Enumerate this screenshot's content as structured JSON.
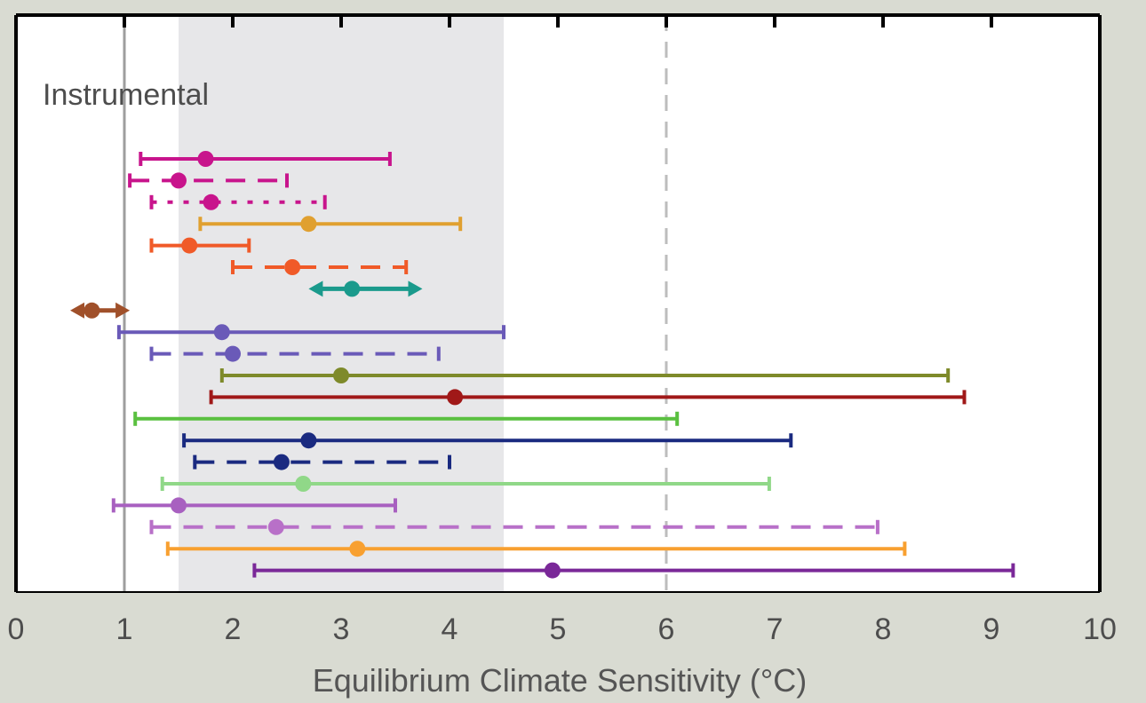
{
  "chart_data": {
    "type": "errorbar",
    "panel_label": "Instrumental",
    "xlabel": "Equilibrium Climate Sensitivity (°C)",
    "xlim": [
      0,
      10
    ],
    "x_ticks": [
      "0",
      "1",
      "2",
      "3",
      "4",
      "5",
      "6",
      "7",
      "8",
      "9",
      "10"
    ],
    "grid": false,
    "reference_lines": [
      {
        "x": 1,
        "style": "solid",
        "color": "#9e9e9e"
      },
      {
        "x": 6,
        "style": "dashed",
        "color": "#bdbdbd"
      }
    ],
    "likely_range": {
      "from": 1.5,
      "to": 4.5,
      "color": "#e7e7e9"
    },
    "estimates": [
      {
        "color": "#c8148c",
        "style": "solid",
        "low": 1.15,
        "best": 1.75,
        "high": 3.45,
        "cap": "bar"
      },
      {
        "color": "#c8148c",
        "style": "dashed",
        "low": 1.05,
        "best": 1.5,
        "high": 2.5,
        "cap": "bar"
      },
      {
        "color": "#c8148c",
        "style": "dotted",
        "low": 1.25,
        "best": 1.8,
        "high": 2.85,
        "cap": "bar"
      },
      {
        "color": "#e0a030",
        "style": "solid",
        "low": 1.7,
        "best": 2.7,
        "high": 4.1,
        "cap": "bar"
      },
      {
        "color": "#f05a28",
        "style": "solid",
        "low": 1.25,
        "best": 1.6,
        "high": 2.15,
        "cap": "bar"
      },
      {
        "color": "#f05a28",
        "style": "dashed",
        "low": 2.0,
        "best": 2.55,
        "high": 3.6,
        "cap": "bar"
      },
      {
        "color": "#1a9a8c",
        "style": "solid",
        "low": 2.7,
        "best": 3.1,
        "high": 3.75,
        "cap": "arrow"
      },
      {
        "color": "#a0502a",
        "style": "solid",
        "low": 0.5,
        "best": 0.7,
        "high": 1.05,
        "cap": "arrow"
      },
      {
        "color": "#6a5ab8",
        "style": "solid",
        "low": 0.95,
        "best": 1.9,
        "high": 4.5,
        "cap": "bar"
      },
      {
        "color": "#6a5ab8",
        "style": "dashed",
        "low": 1.25,
        "best": 2.0,
        "high": 3.9,
        "cap": "bar"
      },
      {
        "color": "#7e8a2a",
        "style": "solid",
        "low": 1.9,
        "best": 3.0,
        "high": 8.6,
        "cap": "bar"
      },
      {
        "color": "#a01818",
        "style": "solid",
        "low": 1.8,
        "best": 4.05,
        "high": 8.75,
        "cap": "bar"
      },
      {
        "color": "#5ac040",
        "style": "solid",
        "low": 1.1,
        "best": null,
        "high": 6.1,
        "cap": "bar"
      },
      {
        "color": "#1a2a80",
        "style": "solid",
        "low": 1.55,
        "best": 2.7,
        "high": 7.15,
        "cap": "bar"
      },
      {
        "color": "#1a2a80",
        "style": "dashed",
        "low": 1.65,
        "best": 2.45,
        "high": 4.0,
        "cap": "bar"
      },
      {
        "color": "#90d888",
        "style": "solid",
        "low": 1.35,
        "best": 2.65,
        "high": 6.95,
        "cap": "bar"
      },
      {
        "color": "#a860c0",
        "style": "solid",
        "low": 0.9,
        "best": 1.5,
        "high": 3.5,
        "cap": "bar"
      },
      {
        "color": "#b870c8",
        "style": "dashed",
        "low": 1.25,
        "best": 2.4,
        "high": 7.95,
        "cap": "bar"
      },
      {
        "color": "#f8a030",
        "style": "solid",
        "low": 1.4,
        "best": 3.15,
        "high": 8.2,
        "cap": "bar"
      },
      {
        "color": "#7a2898",
        "style": "solid",
        "low": 2.2,
        "best": 4.95,
        "high": 9.2,
        "cap": "bar"
      }
    ]
  }
}
